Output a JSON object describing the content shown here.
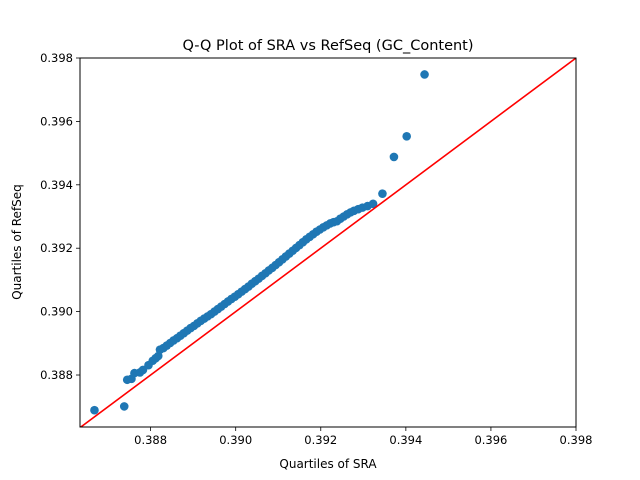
{
  "chart_data": {
    "type": "scatter",
    "title": "Q-Q Plot of SRA vs RefSeq (GC_Content)",
    "xlabel": "Quartiles of SRA",
    "ylabel": "Quartiles of RefSeq",
    "xlim": [
      0.38634,
      0.398
    ],
    "ylim": [
      0.38636,
      0.398
    ],
    "xticks": [
      "0.388",
      "0.390",
      "0.392",
      "0.394",
      "0.396",
      "0.398"
    ],
    "yticks": [
      "0.388",
      "0.390",
      "0.392",
      "0.394",
      "0.396",
      "0.398"
    ],
    "grid": false,
    "legend": "none",
    "colors": {
      "points": "#1f77b4",
      "reference_line": "#ff0000"
    },
    "reference_line": {
      "from": [
        0.386,
        0.386
      ],
      "to": [
        0.398,
        0.398
      ]
    },
    "series": [
      {
        "points": [
          [
            0.38668,
            0.38689
          ],
          [
            0.38738,
            0.38701
          ],
          [
            0.38745,
            0.38785
          ],
          [
            0.38755,
            0.38788
          ],
          [
            0.38762,
            0.38806
          ],
          [
            0.38775,
            0.38808
          ],
          [
            0.38782,
            0.38816
          ],
          [
            0.38795,
            0.38831
          ],
          [
            0.38805,
            0.38845
          ],
          [
            0.38812,
            0.38853
          ],
          [
            0.38818,
            0.3886
          ],
          [
            0.38822,
            0.3888
          ],
          [
            0.3883,
            0.38885
          ],
          [
            0.38838,
            0.38893
          ],
          [
            0.38846,
            0.38901
          ],
          [
            0.38854,
            0.38909
          ],
          [
            0.38862,
            0.38916
          ],
          [
            0.3887,
            0.38924
          ],
          [
            0.38878,
            0.38932
          ],
          [
            0.38886,
            0.3894
          ],
          [
            0.38894,
            0.38948
          ],
          [
            0.38902,
            0.38955
          ],
          [
            0.3891,
            0.38963
          ],
          [
            0.38918,
            0.38971
          ],
          [
            0.38926,
            0.38978
          ],
          [
            0.38934,
            0.38985
          ],
          [
            0.38942,
            0.38992
          ],
          [
            0.3895,
            0.39
          ],
          [
            0.38958,
            0.39008
          ],
          [
            0.38966,
            0.39016
          ],
          [
            0.38974,
            0.39024
          ],
          [
            0.38982,
            0.39032
          ],
          [
            0.3899,
            0.3904
          ],
          [
            0.38998,
            0.39047
          ],
          [
            0.39006,
            0.39055
          ],
          [
            0.39014,
            0.39063
          ],
          [
            0.39022,
            0.39071
          ],
          [
            0.3903,
            0.39079
          ],
          [
            0.39038,
            0.39088
          ],
          [
            0.39046,
            0.39096
          ],
          [
            0.39054,
            0.39104
          ],
          [
            0.39062,
            0.39113
          ],
          [
            0.3907,
            0.39121
          ],
          [
            0.39078,
            0.3913
          ],
          [
            0.39086,
            0.39138
          ],
          [
            0.39094,
            0.39147
          ],
          [
            0.39102,
            0.39156
          ],
          [
            0.3911,
            0.39165
          ],
          [
            0.39118,
            0.39174
          ],
          [
            0.39126,
            0.39183
          ],
          [
            0.39134,
            0.39192
          ],
          [
            0.39142,
            0.39201
          ],
          [
            0.3915,
            0.3921
          ],
          [
            0.39158,
            0.39219
          ],
          [
            0.39166,
            0.39228
          ],
          [
            0.39174,
            0.39236
          ],
          [
            0.39182,
            0.39244
          ],
          [
            0.3919,
            0.39252
          ],
          [
            0.39198,
            0.39259
          ],
          [
            0.39206,
            0.39266
          ],
          [
            0.39214,
            0.39272
          ],
          [
            0.39222,
            0.39278
          ],
          [
            0.3923,
            0.39282
          ],
          [
            0.39238,
            0.39285
          ],
          [
            0.39246,
            0.39293
          ],
          [
            0.39254,
            0.393
          ],
          [
            0.39262,
            0.39307
          ],
          [
            0.3927,
            0.39313
          ],
          [
            0.39278,
            0.39318
          ],
          [
            0.39288,
            0.39323
          ],
          [
            0.39298,
            0.39328
          ],
          [
            0.3931,
            0.39333
          ],
          [
            0.39323,
            0.3934
          ],
          [
            0.39345,
            0.39372
          ],
          [
            0.39372,
            0.39488
          ],
          [
            0.39402,
            0.39553
          ],
          [
            0.39444,
            0.39748
          ]
        ]
      }
    ]
  }
}
